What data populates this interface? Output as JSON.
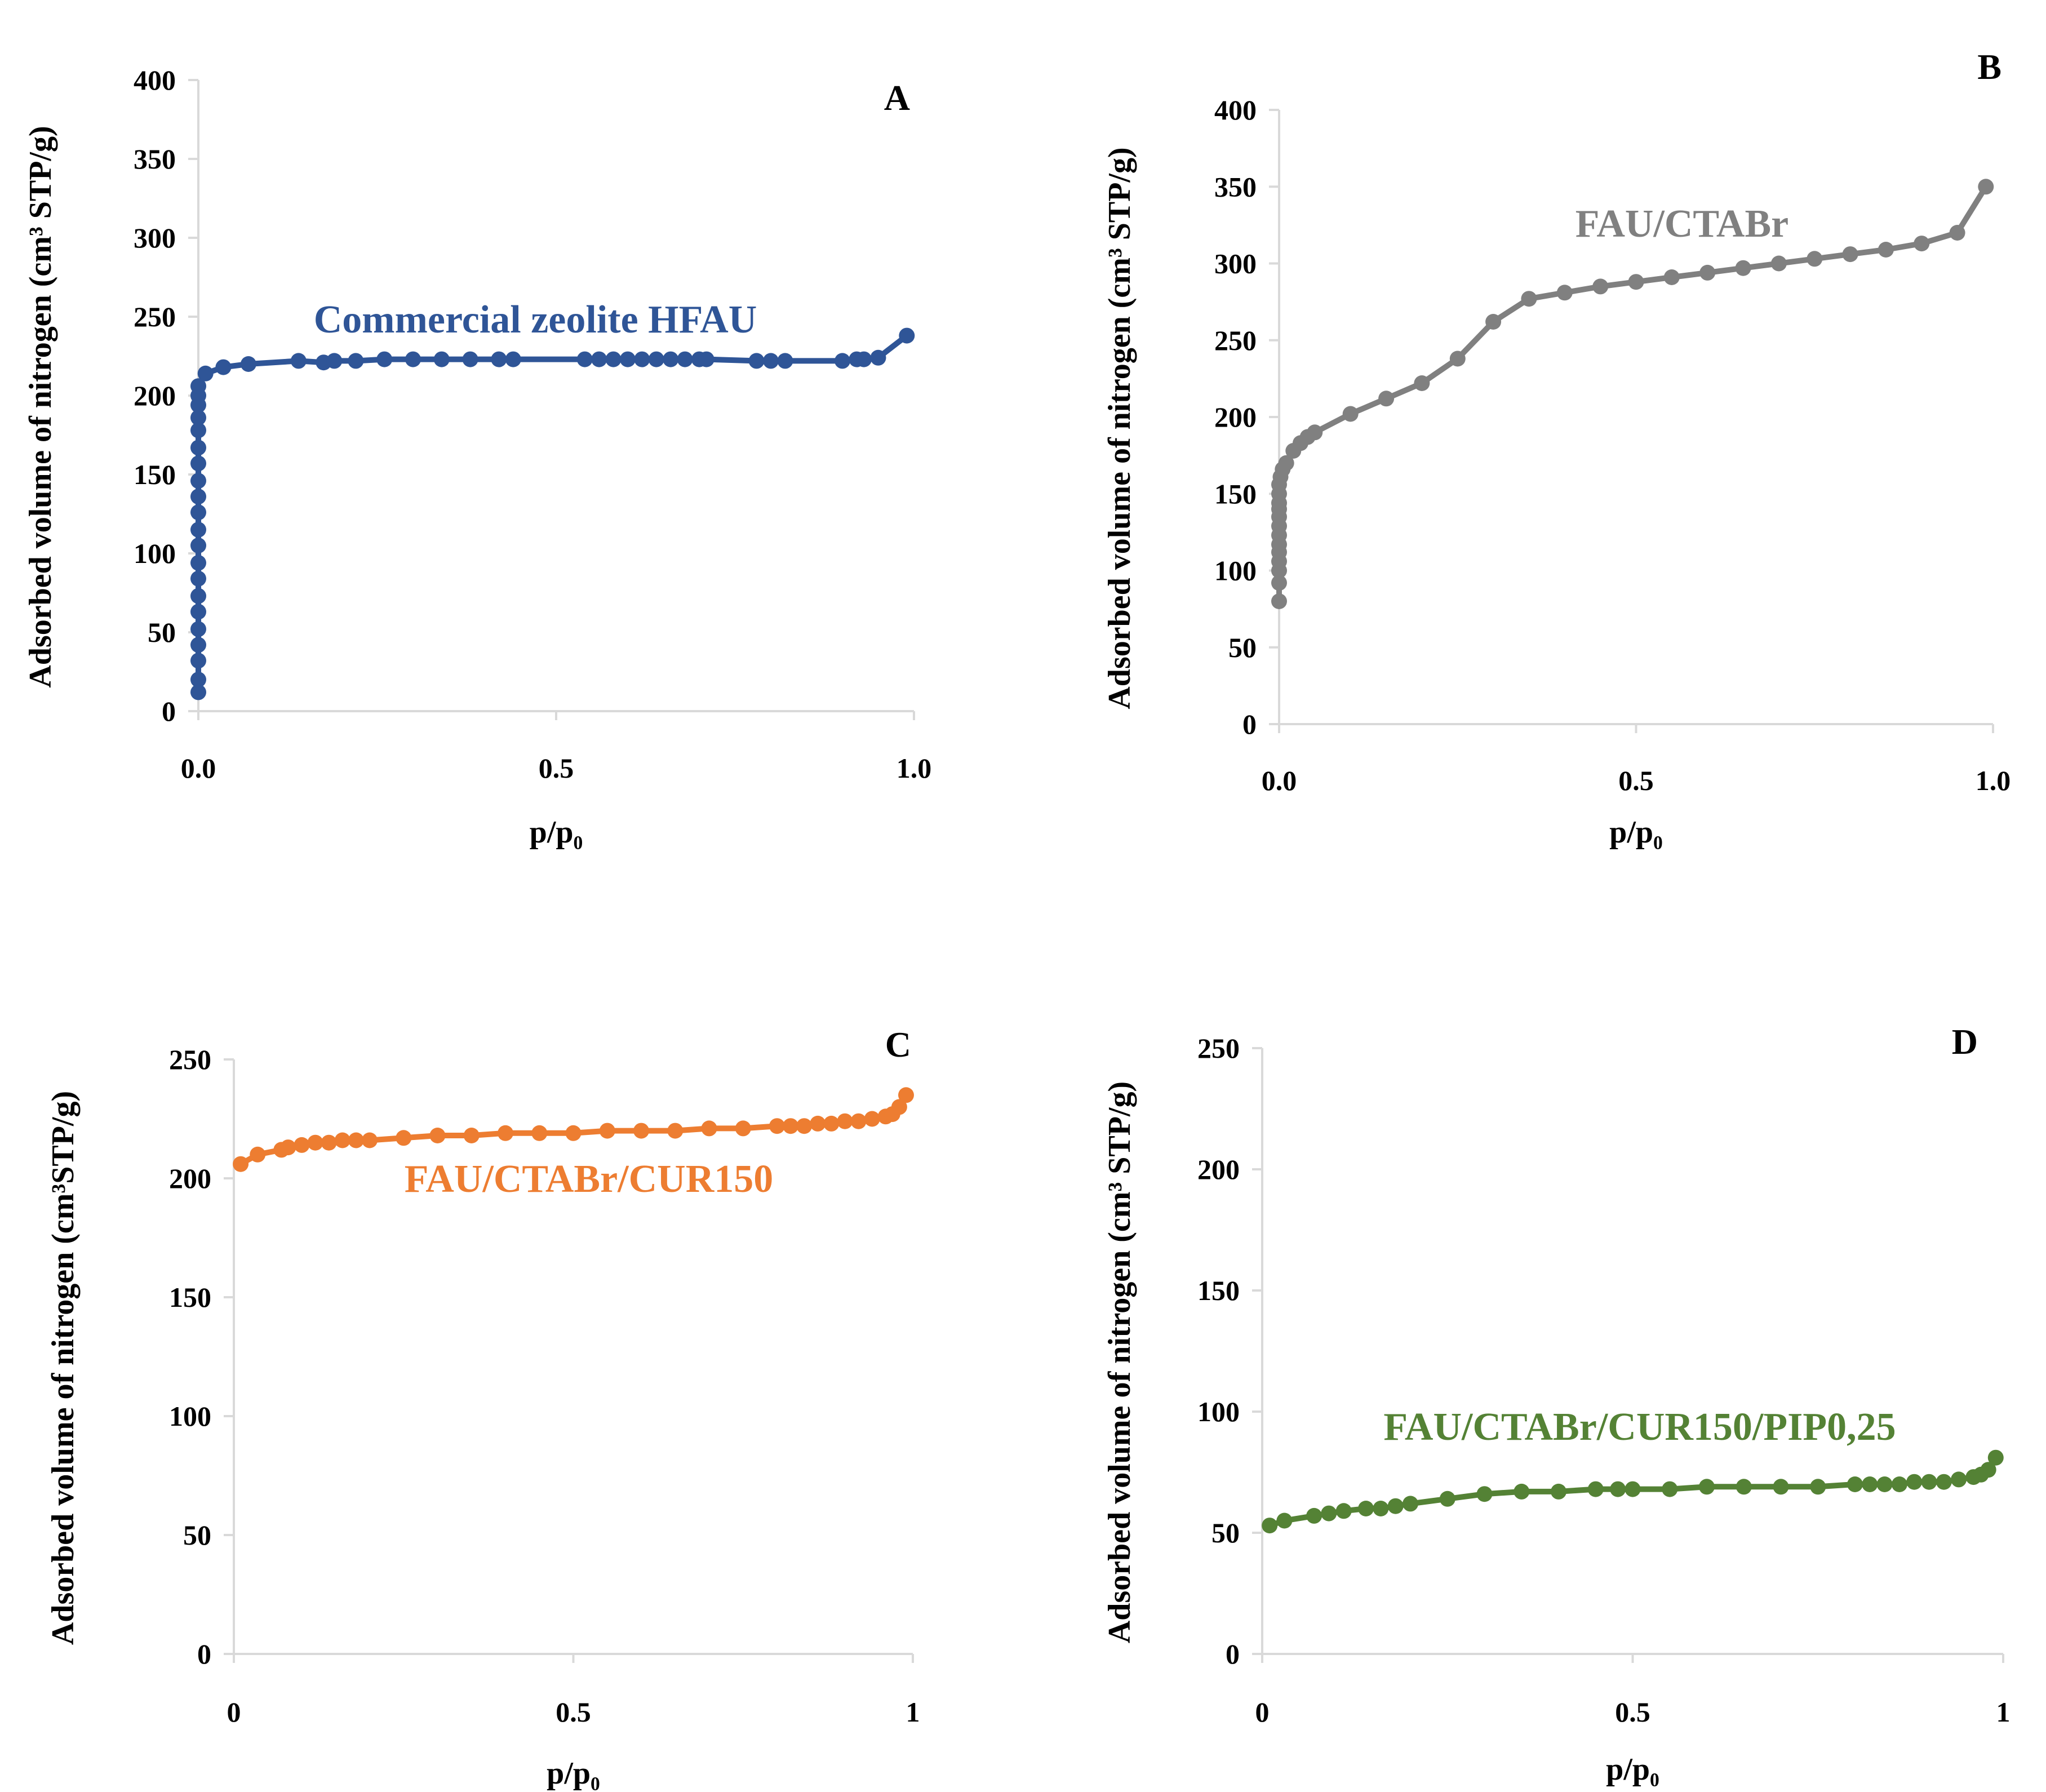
{
  "chart_data": [
    {
      "type": "line",
      "panel": "A",
      "series_label": "Commercial zeolite HFAU",
      "color": "#2f5597",
      "xlabel": "p/p₀",
      "ylabel": "Adsorbed volume of nitrogen  (cm³ STP/g)",
      "xlim": [
        0,
        1
      ],
      "ylim": [
        0,
        400
      ],
      "xticks": [
        "0.0",
        "0.5",
        "1.0"
      ],
      "yticks": [
        "0",
        "50",
        "100",
        "150",
        "200",
        "250",
        "300",
        "350",
        "400"
      ],
      "x": [
        0.0,
        0.0,
        0.0,
        0.0,
        0.0,
        0.0,
        0.0,
        0.0,
        0.0,
        0.0,
        0.0,
        0.0,
        0.0,
        0.0,
        0.0,
        0.0,
        0.0,
        0.0,
        0.0,
        0.0,
        0.0,
        0.01,
        0.035,
        0.07,
        0.14,
        0.175,
        0.19,
        0.22,
        0.26,
        0.3,
        0.34,
        0.38,
        0.42,
        0.44,
        0.54,
        0.56,
        0.58,
        0.6,
        0.62,
        0.64,
        0.66,
        0.68,
        0.7,
        0.71,
        0.78,
        0.8,
        0.82,
        0.9,
        0.92,
        0.93,
        0.95,
        0.99
      ],
      "y": [
        12,
        20,
        32,
        42,
        52,
        63,
        73,
        84,
        94,
        105,
        115,
        126,
        136,
        146,
        157,
        167,
        178,
        186,
        194,
        200,
        206,
        214,
        218,
        220,
        222,
        221,
        222,
        222,
        223,
        223,
        223,
        223,
        223,
        223,
        223,
        223,
        223,
        223,
        223,
        223,
        223,
        223,
        223,
        223,
        222,
        222,
        222,
        222,
        223,
        223,
        224,
        238
      ]
    },
    {
      "type": "line",
      "panel": "B",
      "series_label": "FAU/CTABr",
      "color": "#808080",
      "xlabel": "p/p₀",
      "ylabel": "Adsorbed volume of nitrogen  (cm³ STP/g)",
      "xlim": [
        0,
        1
      ],
      "ylim": [
        0,
        400
      ],
      "xticks": [
        "0.0",
        "0.5",
        "1.0"
      ],
      "yticks": [
        "0",
        "50",
        "100",
        "150",
        "200",
        "250",
        "300",
        "350",
        "400"
      ],
      "x": [
        0.0,
        0.0,
        0.0,
        0.0,
        0.0,
        0.0,
        0.0,
        0.0,
        0.0,
        0.0,
        0.0,
        0.0,
        0.0,
        0.002,
        0.005,
        0.01,
        0.02,
        0.03,
        0.04,
        0.05,
        0.1,
        0.15,
        0.2,
        0.25,
        0.3,
        0.35,
        0.4,
        0.45,
        0.5,
        0.55,
        0.6,
        0.65,
        0.7,
        0.75,
        0.8,
        0.85,
        0.9,
        0.95,
        0.99
      ],
      "y": [
        80,
        92,
        100,
        106,
        112,
        117,
        123,
        129,
        135,
        140,
        144,
        150,
        156,
        161,
        166,
        170,
        178,
        183,
        187,
        190,
        202,
        212,
        222,
        238,
        262,
        277,
        281,
        285,
        288,
        291,
        294,
        297,
        300,
        303,
        306,
        309,
        313,
        320,
        350
      ]
    },
    {
      "type": "line",
      "panel": "C",
      "series_label": "FAU/CTABr/CUR150",
      "color": "#ed7d31",
      "xlabel": "p/p₀",
      "ylabel": "Adsorbed volume of nitrogen  (cm³STP/g)",
      "xlim": [
        0,
        1
      ],
      "ylim": [
        0,
        250
      ],
      "xticks": [
        "0",
        "0.5",
        "1"
      ],
      "yticks": [
        "0",
        "50",
        "100",
        "150",
        "200",
        "250"
      ],
      "x": [
        0.01,
        0.035,
        0.07,
        0.08,
        0.1,
        0.12,
        0.14,
        0.16,
        0.18,
        0.2,
        0.25,
        0.3,
        0.35,
        0.4,
        0.45,
        0.5,
        0.55,
        0.6,
        0.65,
        0.7,
        0.75,
        0.8,
        0.82,
        0.84,
        0.86,
        0.88,
        0.9,
        0.92,
        0.94,
        0.96,
        0.97,
        0.98,
        0.99
      ],
      "y": [
        206,
        210,
        212,
        213,
        214,
        215,
        215,
        216,
        216,
        216,
        217,
        218,
        218,
        219,
        219,
        219,
        220,
        220,
        220,
        221,
        221,
        222,
        222,
        222,
        223,
        223,
        224,
        224,
        225,
        226,
        227,
        230,
        235
      ]
    },
    {
      "type": "line",
      "panel": "D",
      "series_label": "FAU/CTABr/CUR150/PIP0,25",
      "color": "#548235",
      "xlabel": "p/p₀",
      "ylabel": "Adsorbed volume of nitrogen  (cm³ STP/g)",
      "xlim": [
        0,
        1
      ],
      "ylim": [
        0,
        250
      ],
      "xticks": [
        "0",
        "0.5",
        "1"
      ],
      "yticks": [
        "0",
        "50",
        "100",
        "150",
        "200",
        "250"
      ],
      "x": [
        0.01,
        0.03,
        0.07,
        0.09,
        0.11,
        0.14,
        0.16,
        0.18,
        0.2,
        0.25,
        0.3,
        0.35,
        0.4,
        0.45,
        0.48,
        0.5,
        0.55,
        0.6,
        0.65,
        0.7,
        0.75,
        0.8,
        0.82,
        0.84,
        0.86,
        0.88,
        0.9,
        0.92,
        0.94,
        0.96,
        0.97,
        0.98,
        0.99
      ],
      "y": [
        53,
        55,
        57,
        58,
        59,
        60,
        60,
        61,
        62,
        64,
        66,
        67,
        67,
        68,
        68,
        68,
        68,
        69,
        69,
        69,
        69,
        70,
        70,
        70,
        70,
        71,
        71,
        71,
        72,
        73,
        74,
        76,
        81
      ]
    }
  ]
}
